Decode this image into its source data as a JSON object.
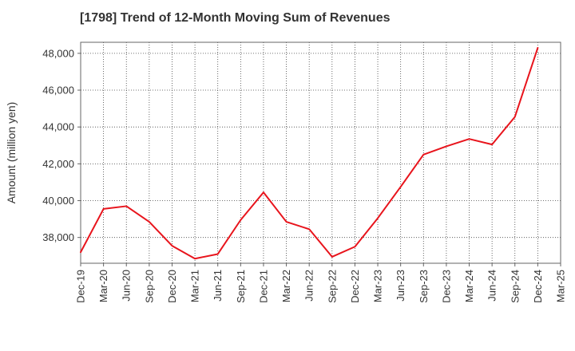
{
  "chart_data": {
    "type": "line",
    "title": "[1798]  Trend of 12-Month Moving Sum of Revenues",
    "ylabel": "Amount (million yen)",
    "xlabel": "",
    "ylim": [
      36600,
      48600
    ],
    "y_ticks": [
      38000,
      40000,
      42000,
      44000,
      46000,
      48000
    ],
    "y_tick_labels": [
      "38,000",
      "40,000",
      "42,000",
      "44,000",
      "46,000",
      "48,000"
    ],
    "grid": true,
    "categories": [
      "Dec-19",
      "Mar-20",
      "Jun-20",
      "Sep-20",
      "Dec-20",
      "Mar-21",
      "Jun-21",
      "Sep-21",
      "Dec-21",
      "Mar-22",
      "Jun-22",
      "Sep-22",
      "Dec-22",
      "Mar-23",
      "Jun-23",
      "Sep-23",
      "Dec-23",
      "Mar-24",
      "Jun-24",
      "Sep-24",
      "Dec-24",
      "Mar-25"
    ],
    "series": [
      {
        "color": "#e8141c",
        "values": [
          37200,
          39550,
          39700,
          38850,
          37550,
          36850,
          37100,
          38950,
          40450,
          38850,
          38450,
          36950,
          37500,
          39050,
          40750,
          42500,
          42950,
          43350,
          43050,
          44550,
          48300,
          null
        ]
      }
    ]
  }
}
